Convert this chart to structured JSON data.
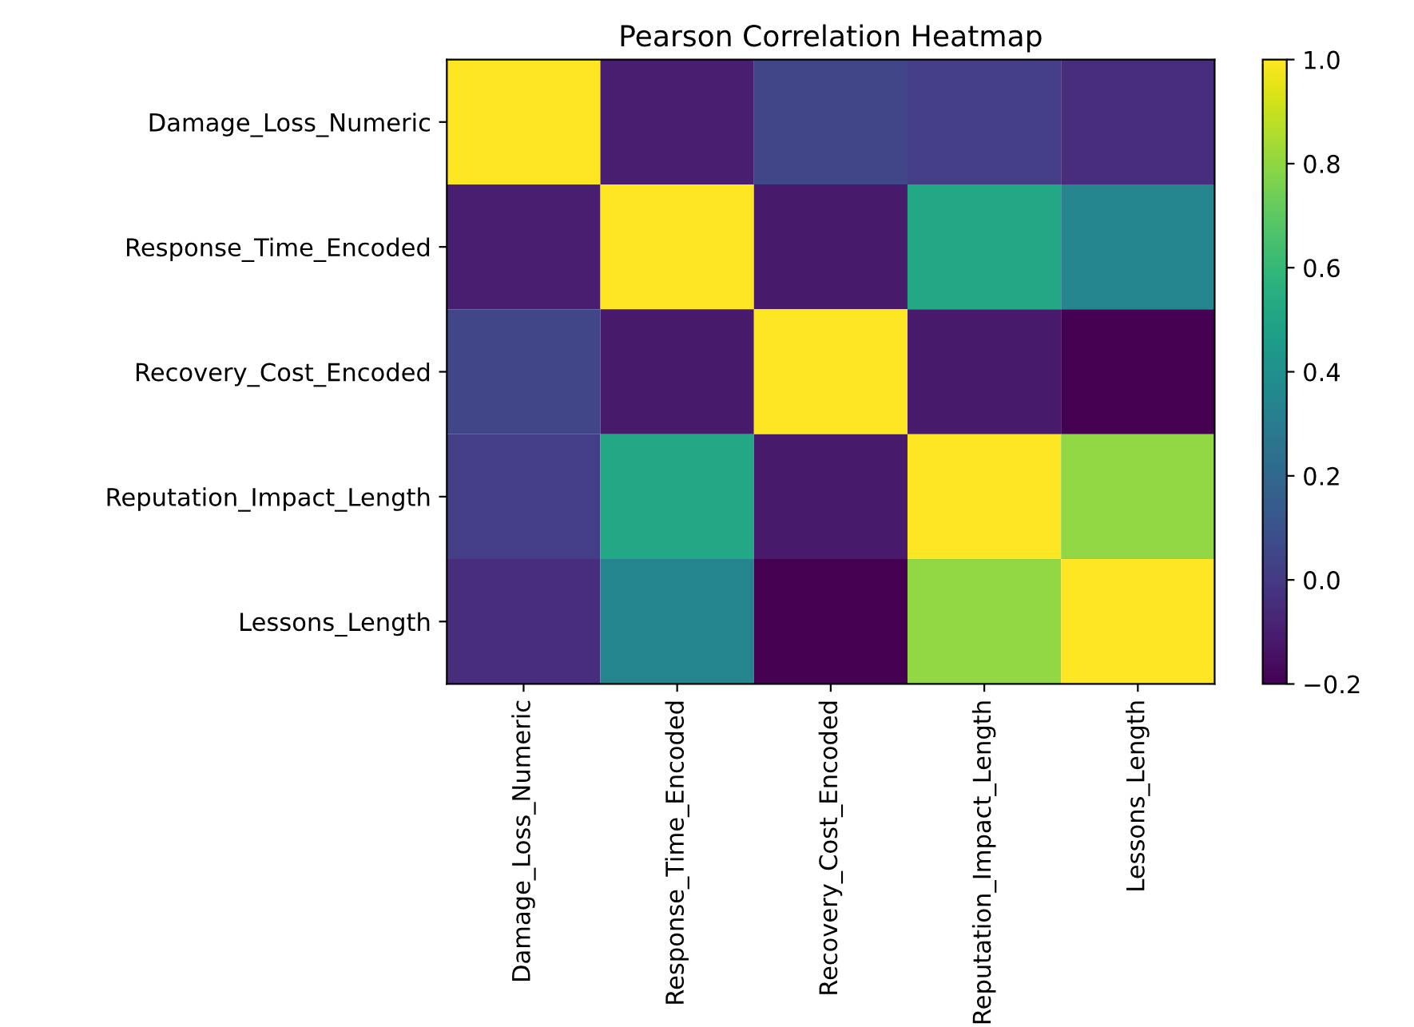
{
  "chart_data": {
    "type": "heatmap",
    "title": "Pearson Correlation Heatmap",
    "categories": [
      "Damage_Loss_Numeric",
      "Response_Time_Encoded",
      "Recovery_Cost_Encoded",
      "Reputation_Impact_Length",
      "Lessons_Length"
    ],
    "y_categories": [
      "Damage_Loss_Numeric",
      "Response_Time_Encoded",
      "Recovery_Cost_Encoded",
      "Reputation_Impact_Length",
      "Lessons_Length"
    ],
    "cells": [
      [
        1.0,
        -0.1,
        0.05,
        0.02,
        -0.05
      ],
      [
        -0.1,
        1.0,
        -0.12,
        0.52,
        0.34
      ],
      [
        0.05,
        -0.12,
        1.0,
        -0.12,
        -0.2
      ],
      [
        0.02,
        0.52,
        -0.12,
        1.0,
        0.8
      ],
      [
        -0.05,
        0.34,
        -0.2,
        0.8,
        1.0
      ]
    ],
    "clim": [
      -0.2,
      1.0
    ],
    "cticks": [
      -0.2,
      {
        "value": 0,
        "label": "0.0"
      },
      0.2,
      0.4,
      0.6,
      0.8,
      {
        "value": 1,
        "label": "1.0"
      }
    ]
  }
}
